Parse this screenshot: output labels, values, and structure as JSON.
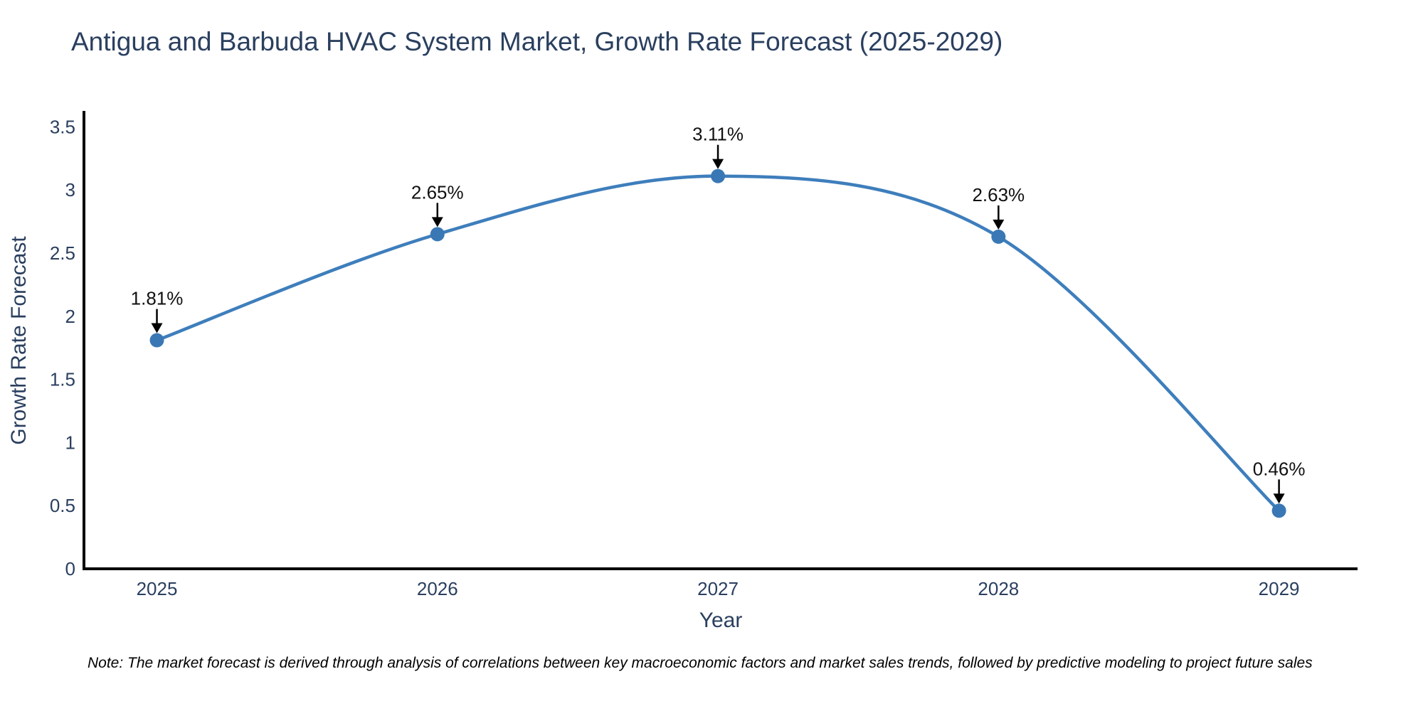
{
  "title": "Antigua and Barbuda HVAC System Market, Growth Rate Forecast (2025-2029)",
  "note": "Note: The market forecast is derived through analysis of correlations between key macroeconomic factors and market sales trends, followed by predictive modeling to project future sales",
  "chart_data": {
    "type": "line",
    "title": "Antigua and Barbuda HVAC System Market, Growth Rate Forecast (2025-2029)",
    "xlabel": "Year",
    "ylabel": "Growth Rate Forecast",
    "x": [
      2025,
      2026,
      2027,
      2028,
      2029
    ],
    "values": [
      1.81,
      2.65,
      3.11,
      2.63,
      0.46
    ],
    "point_labels": [
      "1.81%",
      "2.65%",
      "3.11%",
      "2.63%",
      "0.46%"
    ],
    "xticks": [
      "2025",
      "2026",
      "2027",
      "2028",
      "2029"
    ],
    "yticks": [
      "0",
      "0.5",
      "1",
      "1.5",
      "2",
      "2.5",
      "3",
      "3.5"
    ],
    "xlim": [
      2024.74,
      2029.28
    ],
    "ylim": [
      0,
      3.615
    ],
    "line_shape": "spline",
    "grid": false,
    "legend": false,
    "colors": {
      "line": "#3e7ebc",
      "marker": "#3a78b5",
      "axis": "#000000",
      "tick_text": "#2a3f5f",
      "annotation_text": "#111111",
      "arrow": "#000000",
      "background": "#ffffff"
    }
  }
}
